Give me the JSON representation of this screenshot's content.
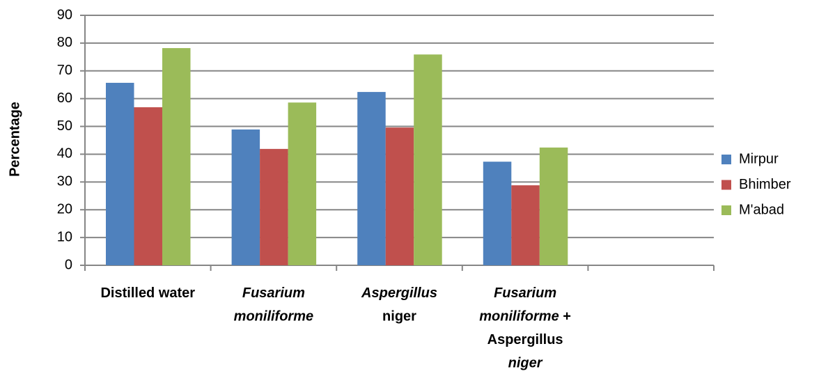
{
  "chart_data": {
    "type": "bar",
    "y_label": "Percentage",
    "categories": [
      "Distilled water",
      "Fusarium moniliforme",
      "Aspergillus niger",
      "Fusarium moniliforme + Aspergillus niger",
      null
    ],
    "series": [
      {
        "name": "Mirpur",
        "color": "#4f81bd",
        "values": [
          65.7,
          48.9,
          62.4,
          37.3,
          null
        ]
      },
      {
        "name": "Bhimber",
        "color": "#c0504d",
        "values": [
          56.9,
          41.9,
          49.6,
          28.8,
          null
        ]
      },
      {
        "name": "M'abad",
        "color": "#9bbb59",
        "values": [
          78.2,
          58.6,
          75.9,
          42.4,
          null
        ]
      }
    ],
    "ylim": [
      0,
      90
    ],
    "yticks": [
      0,
      10,
      20,
      30,
      40,
      50,
      60,
      70,
      80,
      90
    ],
    "grid": true,
    "legend": "right"
  }
}
